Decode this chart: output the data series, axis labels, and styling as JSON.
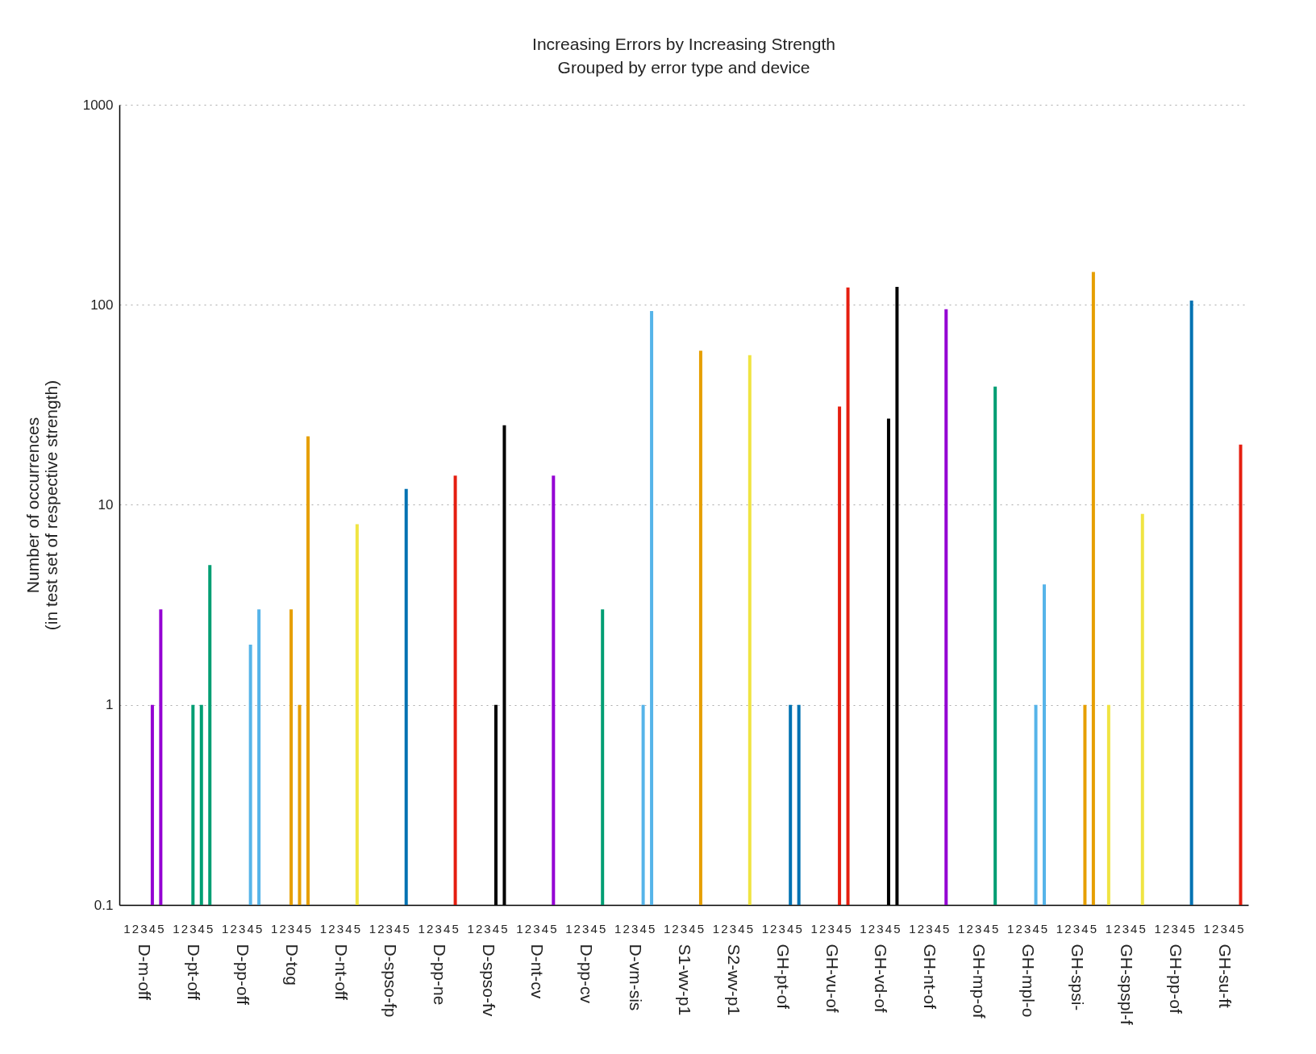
{
  "chart_data": {
    "type": "bar",
    "title": "Increasing Errors by Increasing Strength",
    "subtitle": "Grouped by error type and device",
    "ylabel": "Number of occurrences\n(in test set of respective strength)",
    "categories": [
      "D-m-off",
      "D-pt-off",
      "D-pp-off",
      "D-tog",
      "D-nt-off",
      "D-spso-fp",
      "D-pp-ne",
      "D-spso-fv",
      "D-nt-cv",
      "D-pp-cv",
      "D-vm-sis",
      "S1-wv-p1",
      "S2-wv-p1",
      "GH-pt-of",
      "GH-vu-of",
      "GH-vd-of",
      "GH-nt-of",
      "GH-mp-of",
      "GH-mpl-o",
      "GH-spsi-",
      "GH-spspl-f",
      "GH-pp-of",
      "GH-su-ft"
    ],
    "log": true,
    "ylim": [
      0.1,
      1000
    ],
    "yticks": [
      0.1,
      1,
      10,
      100,
      1000
    ],
    "grid": "y",
    "series": [
      {
        "name": "1",
        "colors": [
          "#9400d3",
          "#009e73",
          "#56b4e9",
          "#e69f00",
          "#f0e442",
          "#0072b2",
          "#e51e10",
          "#000000",
          "#9400d3",
          "#009e73",
          "#56b4e9",
          "#e69f00",
          "#f0e442",
          "#0072b2",
          "#e51e10",
          "#000000",
          "#9400d3",
          "#009e73",
          "#56b4e9",
          "#e69f00",
          "#f0e442",
          "#0072b2",
          "#e51e10"
        ],
        "values": [
          null,
          null,
          null,
          null,
          null,
          null,
          null,
          null,
          null,
          null,
          null,
          null,
          null,
          null,
          null,
          null,
          null,
          null,
          null,
          null,
          1,
          null,
          null
        ]
      },
      {
        "name": "2",
        "colors": [
          "#9400d3",
          "#009e73",
          "#56b4e9",
          "#e69f00",
          "#f0e442",
          "#0072b2",
          "#e51e10",
          "#000000",
          "#9400d3",
          "#009e73",
          "#56b4e9",
          "#e69f00",
          "#f0e442",
          "#0072b2",
          "#e51e10",
          "#000000",
          "#9400d3",
          "#009e73",
          "#56b4e9",
          "#e69f00",
          "#f0e442",
          "#0072b2",
          "#e51e10"
        ],
        "values": [
          null,
          null,
          null,
          null,
          null,
          null,
          null,
          null,
          null,
          null,
          null,
          null,
          null,
          null,
          null,
          null,
          null,
          null,
          null,
          null,
          null,
          null,
          null
        ]
      },
      {
        "name": "3",
        "colors": [
          "#9400d3",
          "#009e73",
          "#56b4e9",
          "#e69f00",
          "#f0e442",
          "#0072b2",
          "#e51e10",
          "#000000",
          "#9400d3",
          "#009e73",
          "#56b4e9",
          "#e69f00",
          "#f0e442",
          "#0072b2",
          "#e51e10",
          "#000000",
          "#9400d3",
          "#009e73",
          "#56b4e9",
          "#e69f00",
          "#f0e442",
          "#0072b2",
          "#e51e10"
        ],
        "values": [
          null,
          1,
          null,
          3,
          null,
          null,
          null,
          null,
          null,
          null,
          null,
          null,
          null,
          null,
          null,
          null,
          null,
          null,
          null,
          null,
          null,
          null,
          null
        ]
      },
      {
        "name": "4",
        "colors": [
          "#9400d3",
          "#009e73",
          "#56b4e9",
          "#e69f00",
          "#f0e442",
          "#0072b2",
          "#e51e10",
          "#000000",
          "#9400d3",
          "#009e73",
          "#56b4e9",
          "#e69f00",
          "#f0e442",
          "#0072b2",
          "#e51e10",
          "#000000",
          "#9400d3",
          "#009e73",
          "#56b4e9",
          "#e69f00",
          "#f0e442",
          "#0072b2",
          "#e51e10"
        ],
        "values": [
          1,
          1,
          2,
          1,
          null,
          null,
          null,
          1,
          null,
          null,
          1,
          null,
          null,
          1,
          31,
          27,
          null,
          null,
          1,
          1,
          null,
          null,
          null
        ]
      },
      {
        "name": "5",
        "colors": [
          "#9400d3",
          "#009e73",
          "#56b4e9",
          "#e69f00",
          "#f0e442",
          "#0072b2",
          "#e51e10",
          "#000000",
          "#9400d3",
          "#009e73",
          "#56b4e9",
          "#e69f00",
          "#f0e442",
          "#0072b2",
          "#e51e10",
          "#000000",
          "#9400d3",
          "#009e73",
          "#56b4e9",
          "#e69f00",
          "#f0e442",
          "#0072b2",
          "#e51e10"
        ],
        "values": [
          3,
          5,
          3,
          22,
          8,
          12,
          14,
          25,
          14,
          3,
          93,
          59,
          56,
          1,
          122,
          123,
          95,
          39,
          4,
          146,
          9,
          105,
          20
        ]
      }
    ]
  }
}
